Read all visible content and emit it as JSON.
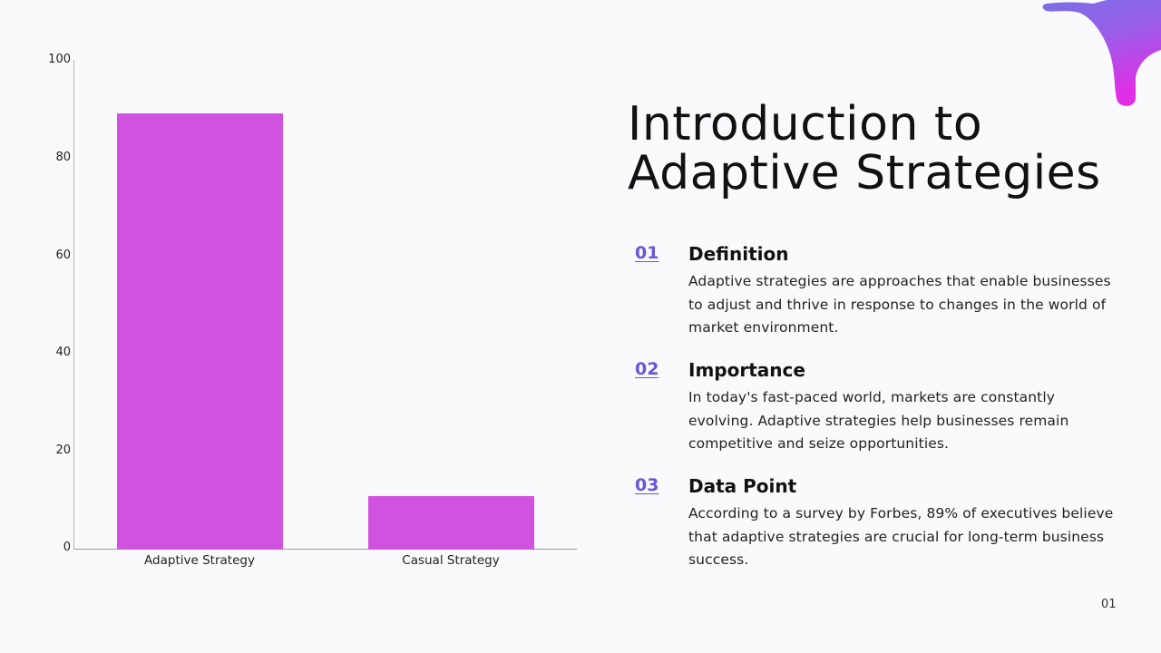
{
  "slide": {
    "title_line1": "Introduction to",
    "title_line2": "Adaptive Strategies",
    "page_number": "01",
    "accent_color": "#6b55d6",
    "bar_color": "#d252e0"
  },
  "items": [
    {
      "number": "01",
      "heading": "Definition",
      "body": "Adaptive strategies are approaches that enable businesses to adjust and thrive in response to changes in the world of market environment."
    },
    {
      "number": "02",
      "heading": "Importance",
      "body": "In today's fast-paced world, markets are constantly evolving. Adaptive strategies help businesses remain competitive and seize opportunities."
    },
    {
      "number": "03",
      "heading": "Data Point",
      "body": "According to a survey by Forbes, 89% of executives believe that adaptive strategies are crucial for long-term business success."
    }
  ],
  "chart_data": {
    "type": "bar",
    "title": "",
    "xlabel": "",
    "ylabel": "",
    "categories": [
      "Adaptive Strategy",
      "Casual Strategy"
    ],
    "values": [
      89,
      11
    ],
    "ylim": [
      0,
      100
    ],
    "yticks": [
      "0",
      "20",
      "40",
      "60",
      "80",
      "100"
    ],
    "grid": false,
    "legend": null,
    "color": "#d252e0"
  }
}
